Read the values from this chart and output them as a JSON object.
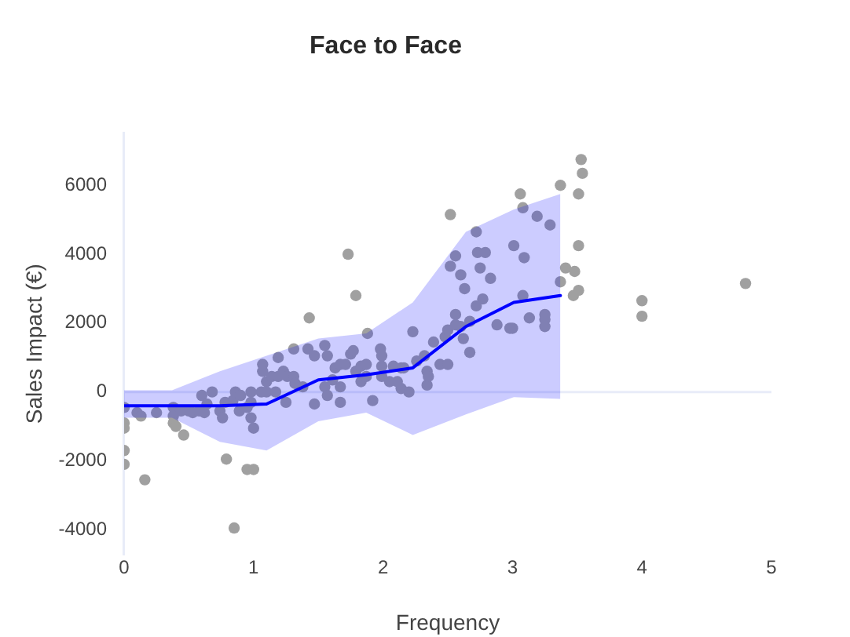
{
  "chart_data": {
    "type": "scatter",
    "title": "Face to Face",
    "xlabel": "Frequency",
    "ylabel": "Sales Impact (€)",
    "xlim": [
      0,
      5
    ],
    "xticks": [
      0,
      1,
      2,
      3,
      4,
      5
    ],
    "ylim": [
      -4700,
      7500
    ],
    "yticks": [
      -4000,
      -2000,
      0,
      2000,
      4000,
      6000
    ],
    "grid": false,
    "legend": false,
    "marker": "circle",
    "ref_lines": [
      {
        "axis": "y",
        "value": 0,
        "color": "#e8ecf8"
      }
    ],
    "series": [
      {
        "color": "#a0a0a0",
        "x": [
          0,
          0,
          0,
          0,
          0,
          0.1,
          0.13,
          0.16,
          0.25,
          0.38,
          0.38,
          0.38,
          0.4,
          0.44,
          0.46,
          0.5,
          0.53,
          0.58,
          0.6,
          0.62,
          0.64,
          0.68,
          0.74,
          0.76,
          0.78,
          0.79,
          0.84,
          0.85,
          0.86,
          0.89,
          0.9,
          0.95,
          0.95,
          0.98,
          0.98,
          0.98,
          1.0,
          1.0,
          1.06,
          1.07,
          1.07,
          1.1,
          1.1,
          1.14,
          1.17,
          1.19,
          1.19,
          1.23,
          1.25,
          1.26,
          1.31,
          1.31,
          1.32,
          1.38,
          1.42,
          1.43,
          1.47,
          1.47,
          1.55,
          1.55,
          1.57,
          1.57,
          1.61,
          1.63,
          1.67,
          1.67,
          1.67,
          1.71,
          1.73,
          1.75,
          1.77,
          1.79,
          1.79,
          1.83,
          1.83,
          1.87,
          1.87,
          1.88,
          1.92,
          1.98,
          1.99,
          1.99,
          1.99,
          2.05,
          2.08,
          2.11,
          2.14,
          2.14,
          2.16,
          2.2,
          2.23,
          2.26,
          2.32,
          2.34,
          2.34,
          2.35,
          2.39,
          2.44,
          2.48,
          2.5,
          2.5,
          2.52,
          2.52,
          2.56,
          2.56,
          2.56,
          2.6,
          2.6,
          2.62,
          2.63,
          2.67,
          2.67,
          2.72,
          2.72,
          2.73,
          2.75,
          2.77,
          2.79,
          2.83,
          2.88,
          2.98,
          3.0,
          3.01,
          3.06,
          3.08,
          3.08,
          3.09,
          3.13,
          3.19,
          3.25,
          3.25,
          3.25,
          3.29,
          3.37,
          3.37,
          3.41,
          3.47,
          3.48,
          3.51,
          3.51,
          3.51,
          3.53,
          3.54,
          4.0,
          4.0,
          4.8
        ],
        "values": [
          -450,
          -900,
          -1050,
          -1700,
          -2100,
          -600,
          -700,
          -2550,
          -600,
          -450,
          -700,
          -900,
          -1000,
          -550,
          -1250,
          -550,
          -600,
          -550,
          -100,
          -600,
          -350,
          0,
          -550,
          -750,
          -300,
          -1950,
          -250,
          -3950,
          0,
          -550,
          -100,
          -450,
          -2250,
          0,
          -300,
          -750,
          -1050,
          -2250,
          0,
          800,
          600,
          300,
          0,
          450,
          0,
          1000,
          450,
          600,
          -300,
          450,
          1250,
          450,
          250,
          150,
          1250,
          2150,
          1050,
          -350,
          1350,
          150,
          1050,
          -100,
          350,
          700,
          800,
          150,
          -300,
          800,
          4000,
          1100,
          1200,
          600,
          2800,
          300,
          750,
          450,
          800,
          1700,
          -250,
          1250,
          1050,
          750,
          450,
          300,
          750,
          300,
          700,
          100,
          700,
          0,
          1750,
          900,
          1050,
          600,
          200,
          450,
          1450,
          800,
          1600,
          800,
          1800,
          3650,
          5150,
          3950,
          2250,
          1950,
          1900,
          3400,
          1550,
          3000,
          1150,
          2050,
          4650,
          2500,
          4050,
          3600,
          2700,
          4050,
          3300,
          1950,
          1850,
          1850,
          4250,
          5750,
          5350,
          2800,
          3900,
          2150,
          5100,
          2250,
          2100,
          1900,
          4850,
          6000,
          3200,
          3600,
          2800,
          3500,
          5750,
          4250,
          2950,
          6750,
          6350,
          2650,
          2200,
          3150
        ]
      },
      {
        "type": "line",
        "color": "#0000ff",
        "marker": "none",
        "x": [
          0,
          0.37,
          0.74,
          1.1,
          1.5,
          1.87,
          2.23,
          2.64,
          3.01,
          3.37
        ],
        "values": [
          -400,
          -400,
          -400,
          -350,
          350,
          500,
          700,
          1900,
          2600,
          2800
        ],
        "lower": [
          -750,
          -750,
          -1450,
          -1700,
          -850,
          -600,
          -1250,
          -650,
          -150,
          -200
        ],
        "upper": [
          50,
          50,
          600,
          1050,
          1550,
          1700,
          2600,
          4650,
          5300,
          5750
        ]
      }
    ]
  }
}
